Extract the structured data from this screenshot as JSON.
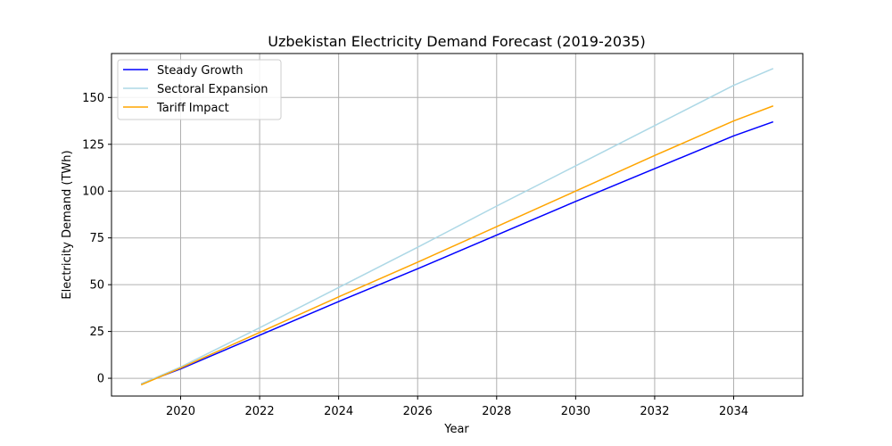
{
  "chart_data": {
    "type": "line",
    "title": "Uzbekistan Electricity Demand Forecast (2019-2035)",
    "xlabel": "Year",
    "ylabel": "Electricity Demand (TWh)",
    "x": [
      2019,
      2020,
      2022,
      2024,
      2026,
      2028,
      2030,
      2032,
      2034,
      2035
    ],
    "xlim": [
      2018.25,
      2035.75
    ],
    "ylim": [
      -9.5,
      173.5
    ],
    "xticks": [
      2020,
      2022,
      2024,
      2026,
      2028,
      2030,
      2032,
      2034
    ],
    "yticks": [
      0,
      25,
      50,
      75,
      100,
      125,
      150
    ],
    "grid": true,
    "legend_position": "top-left",
    "series": [
      {
        "name": "Steady Growth",
        "color": "#0000ff",
        "values": [
          -3,
          5,
          23,
          41,
          58.5,
          76.5,
          94.5,
          112,
          129.5,
          137
        ]
      },
      {
        "name": "Sectoral Expansion",
        "color": "#add8e6",
        "values": [
          -3,
          6,
          27,
          48.5,
          70,
          92,
          113.5,
          135,
          156.5,
          165.5
        ]
      },
      {
        "name": "Tariff Impact",
        "color": "#ffa500",
        "values": [
          -3.5,
          5.5,
          24.5,
          43.5,
          62,
          81,
          100,
          119,
          137.5,
          145.5
        ]
      }
    ]
  }
}
